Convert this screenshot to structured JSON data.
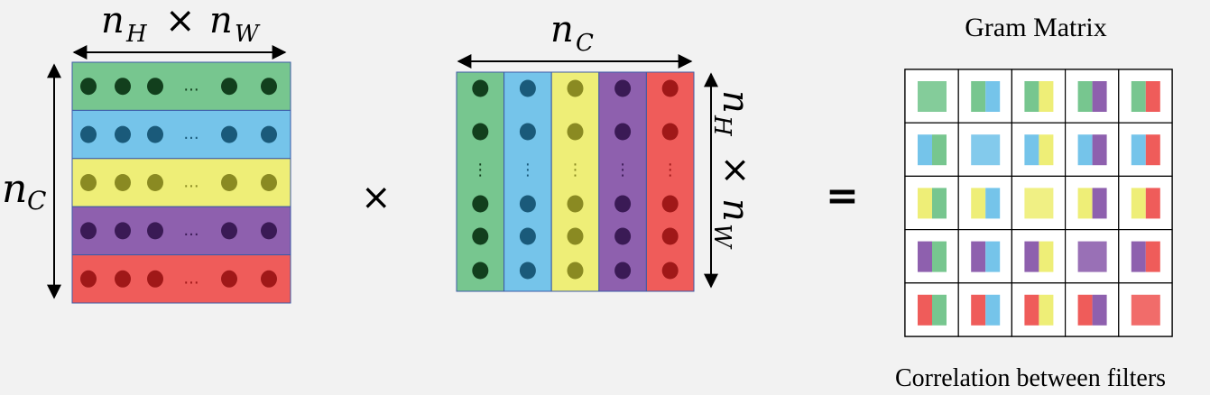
{
  "colors": {
    "green": "#77c68f",
    "blue": "#75c4ea",
    "yellow": "#eeee77",
    "purple": "#8e60ae",
    "red": "#ef5c5a",
    "dot_green": "#123f1d",
    "dot_blue": "#1a5a7a",
    "dot_yellow": "#8a8a22",
    "dot_purple": "#3a1a55",
    "dot_red": "#a01818",
    "background": "#f2f2f2"
  },
  "left_matrix": {
    "top_label_n1": "n",
    "top_label_sub1": "H",
    "times": "×",
    "top_label_n2": "n",
    "top_label_sub2": "W",
    "side_label_n": "n",
    "side_label_sub": "C",
    "ellipsis": "..."
  },
  "multiply_symbol": "×",
  "middle_matrix": {
    "top_label_n": "n",
    "top_label_sub": "C",
    "side_label_n1": "n",
    "side_label_sub1": "H",
    "times": "×",
    "side_label_n2": "n",
    "side_label_sub2": "W",
    "ellipsis": "⋮"
  },
  "equals_symbol": "=",
  "gram": {
    "title": "Gram Matrix",
    "caption": "Correlation between filters"
  }
}
